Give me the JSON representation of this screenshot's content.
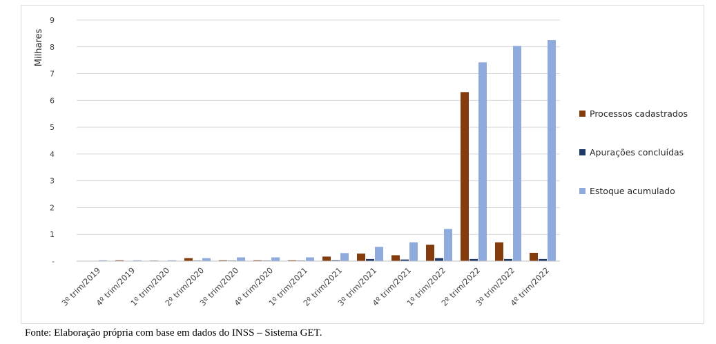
{
  "chart_data": {
    "type": "bar",
    "ylabel": "Milhares",
    "ylim": [
      0,
      9
    ],
    "yticks": [
      {
        "value": 0,
        "label": "-"
      },
      {
        "value": 1,
        "label": "1"
      },
      {
        "value": 2,
        "label": "2"
      },
      {
        "value": 3,
        "label": "3"
      },
      {
        "value": 4,
        "label": "4"
      },
      {
        "value": 5,
        "label": "5"
      },
      {
        "value": 6,
        "label": "6"
      },
      {
        "value": 7,
        "label": "7"
      },
      {
        "value": 8,
        "label": "8"
      },
      {
        "value": 9,
        "label": "9"
      }
    ],
    "grid": true,
    "legend_position": "right",
    "categories": [
      "3º trim/2019",
      "4º trim/2019",
      "1º trim/2020",
      "2º trim/2020",
      "3º trim/2020",
      "4º trim/2020",
      "1º trim/2021",
      "2º trim/2021",
      "3º trim/2021",
      "4º trim/2021",
      "1º trim/2022",
      "2º trim/2022",
      "3º trim/2022",
      "4º trim/2022"
    ],
    "series": [
      {
        "name": "Processos cadastrados",
        "color": "#843c0c",
        "values": [
          0.01,
          0.03,
          0.02,
          0.11,
          0.03,
          0.03,
          0.03,
          0.17,
          0.28,
          0.22,
          0.61,
          6.31,
          0.7,
          0.31
        ]
      },
      {
        "name": "Apurações concluídas",
        "color": "#1f3864",
        "values": [
          0.0,
          0.0,
          0.0,
          0.02,
          0.02,
          0.02,
          0.02,
          0.03,
          0.08,
          0.06,
          0.11,
          0.08,
          0.08,
          0.08
        ]
      },
      {
        "name": "Estoque acumulado",
        "color": "#8faadc",
        "values": [
          0.03,
          0.03,
          0.03,
          0.11,
          0.14,
          0.14,
          0.14,
          0.3,
          0.53,
          0.7,
          1.2,
          7.42,
          8.03,
          8.25
        ]
      }
    ]
  },
  "caption": "Fonte: Elaboração própria com base em dados do INSS – Sistema GET."
}
